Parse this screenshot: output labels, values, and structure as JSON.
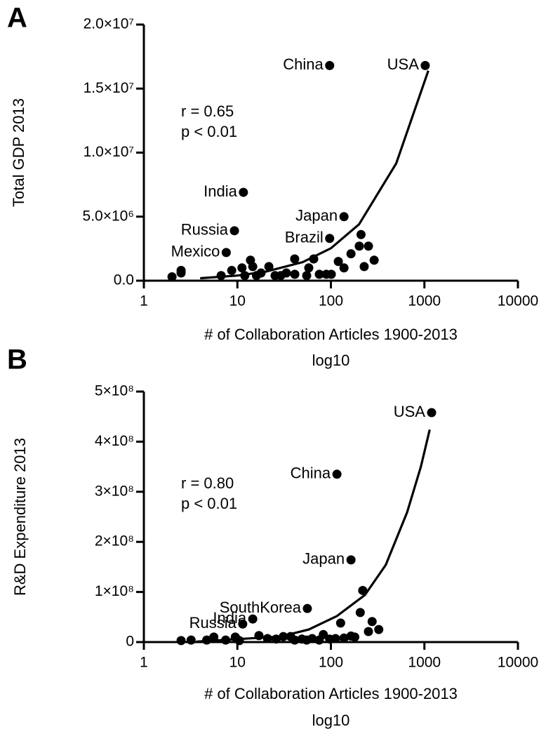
{
  "chart_data": [
    {
      "type": "scatter",
      "panel": "A",
      "ylabel": "Total GDP 2013",
      "xlabel": "# of Collaboration Articles 1900-2013",
      "xlabel_note": "log10",
      "annotations": [
        "r = 0.65",
        "p < 0.01"
      ],
      "xscale": "log",
      "xlim": [
        1,
        10000
      ],
      "xticks": [
        1,
        10,
        100,
        1000,
        10000
      ],
      "ylim": [
        0,
        20000000
      ],
      "yticks": [
        {
          "value": 0,
          "label": "0.0"
        },
        {
          "value": 5000000,
          "label": "5.0×10⁶"
        },
        {
          "value": 10000000,
          "label": "1.0×10⁷"
        },
        {
          "value": 15000000,
          "label": "1.5×10⁷"
        },
        {
          "value": 20000000,
          "label": "2.0×10⁷"
        }
      ],
      "color": "#000000",
      "x": [
        1020,
        97,
        11.6,
        138,
        9.3,
        97,
        7.6,
        2.0,
        2.5,
        2.5,
        6.7,
        8.7,
        11.2,
        13.8,
        14.6,
        17.9,
        21.7,
        25.3,
        29.1,
        33.4,
        41.1,
        41,
        55.1,
        58,
        65.5,
        75.2,
        89.4,
        101,
        120,
        138,
        164,
        201,
        227,
        252,
        290,
        210,
        12,
        16
      ],
      "values": [
        16800000,
        16800000,
        6900000,
        5000000,
        3900000,
        3300000,
        2200000,
        300000,
        800000,
        600000,
        400000,
        800000,
        1000000,
        1600000,
        1100000,
        600000,
        1100000,
        400000,
        400000,
        600000,
        500000,
        1700000,
        400000,
        1000000,
        1700000,
        500000,
        500000,
        500000,
        1500000,
        1000000,
        2100000,
        2700000,
        1100000,
        2700000,
        1600000,
        3600000,
        400000,
        400000
      ],
      "point_labels": [
        "USA",
        "China",
        "India",
        "Japan",
        "Russia",
        "Brazil",
        "Mexico",
        null,
        null,
        null,
        null,
        null,
        null,
        null,
        null,
        null,
        null,
        null,
        null,
        null,
        null,
        null,
        null,
        null,
        null,
        null,
        null,
        null,
        null,
        null,
        null,
        null,
        null,
        null,
        null,
        null,
        null,
        null
      ],
      "fit": {
        "x": [
          4,
          10,
          20,
          50,
          100,
          200,
          500,
          1100
        ],
        "y": [
          190000,
          400000,
          700000,
          1450000,
          2530000,
          4400000,
          9160000,
          16400000
        ]
      }
    },
    {
      "type": "scatter",
      "panel": "B",
      "ylabel": "R&D Expenditure 2013",
      "xlabel": "# of Collaboration Articles 1900-2013",
      "xlabel_note": "log10",
      "annotations": [
        "r = 0.80",
        "p < 0.01"
      ],
      "xscale": "log",
      "xlim": [
        1,
        10000
      ],
      "xticks": [
        1,
        10,
        100,
        1000,
        10000
      ],
      "ylim": [
        0,
        500000000
      ],
      "yticks": [
        0,
        {
          "value": 100000000,
          "label": "1×10⁸"
        },
        {
          "value": 200000000,
          "label": "2×10⁸"
        },
        {
          "value": 300000000,
          "label": "3×10⁸"
        },
        {
          "value": 400000000,
          "label": "4×10⁸"
        },
        {
          "value": 500000000,
          "label": "5×10⁸"
        }
      ],
      "color": "#000000",
      "x": [
        1194,
        116,
        164,
        56,
        14.6,
        11.4,
        2.5,
        3.2,
        4.7,
        5.6,
        7.5,
        9.5,
        10.5,
        17,
        21,
        26,
        31,
        37,
        41,
        49,
        55,
        63,
        75,
        83,
        97,
        112,
        127,
        138,
        164,
        206,
        219,
        276,
        252,
        325,
        180
      ],
      "values": [
        458000000,
        335000000,
        164000000,
        67000000,
        46000000,
        36000000,
        3000000,
        4000000,
        4000000,
        10000000,
        4000000,
        10000000,
        3000000,
        13000000,
        7000000,
        6000000,
        11000000,
        11000000,
        4000000,
        6000000,
        4000000,
        7000000,
        4000000,
        15000000,
        6000000,
        7000000,
        38000000,
        8000000,
        12000000,
        59000000,
        103000000,
        41000000,
        21000000,
        25000000,
        10000000
      ],
      "point_labels": [
        "USA",
        "China",
        "Japan",
        "SouthKorea",
        "India",
        "Russia",
        null,
        null,
        null,
        null,
        null,
        null,
        null,
        null,
        null,
        null,
        null,
        null,
        null,
        null,
        null,
        null,
        null,
        null,
        null,
        null,
        null,
        null,
        null,
        null,
        null,
        null,
        null,
        null,
        null
      ],
      "fit": {
        "x": [
          3.65,
          29,
          58,
          116,
          231,
          386,
          653,
          916,
          1140
        ],
        "y": [
          1000000,
          11000000,
          25000000,
          52000000,
          94000000,
          154000000,
          259000000,
          350000000,
          424000000
        ]
      }
    }
  ]
}
